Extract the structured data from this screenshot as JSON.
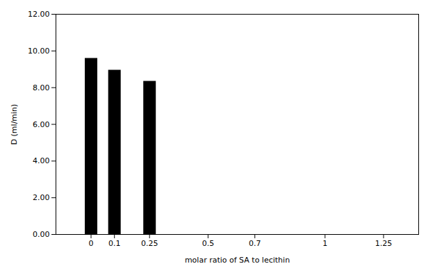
{
  "chart_data": {
    "type": "bar",
    "x": [
      0,
      0.1,
      0.25
    ],
    "values": [
      9.6,
      8.95,
      8.35
    ],
    "color": "#000000",
    "xlim": [
      -0.15,
      1.4
    ],
    "ylim": [
      0,
      12
    ],
    "xticks": [
      0,
      0.1,
      0.25,
      0.5,
      0.7,
      1,
      1.25
    ],
    "yticks": [
      {
        "value": 0.0,
        "label": "0.00"
      },
      {
        "value": 2.0,
        "label": "2.00"
      },
      {
        "value": 4.0,
        "label": "4.00"
      },
      {
        "value": 6.0,
        "label": "6.00"
      },
      {
        "value": 8.0,
        "label": "8.00"
      },
      {
        "value": 10.0,
        "label": "10.00"
      },
      {
        "value": 12.0,
        "label": "12.00"
      }
    ],
    "xlabel": "molar ratio of SA to lecithin",
    "ylabel": "D (ml/min)",
    "grid": false
  }
}
